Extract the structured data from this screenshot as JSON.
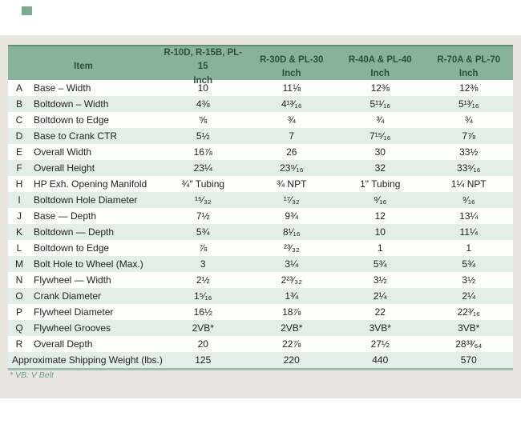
{
  "colors": {
    "header_bg": "#89b29a",
    "header_text": "#2f4f3e",
    "row_alt_bg": "#e2eee7",
    "panel_bg": "#e9e5df",
    "footnote_green": "#6ca287"
  },
  "table": {
    "item_header": "Item",
    "columns": [
      {
        "line1": "R-10D, R-15B, PL-15",
        "line2": "Inch"
      },
      {
        "line1": "R-30D & PL-30",
        "line2": "Inch"
      },
      {
        "line1": "R-40A & PL-40",
        "line2": "Inch"
      },
      {
        "line1": "R-70A & PL-70",
        "line2": "Inch"
      }
    ],
    "rows": [
      {
        "letter": "A",
        "item": "Base – Width",
        "values": [
          "10",
          "11⅛",
          "12⅜",
          "12⅜"
        ]
      },
      {
        "letter": "B",
        "item": "Boltdown – Width",
        "values": [
          "4⅜",
          "4¹³⁄₁₆",
          "5¹¹⁄₁₆",
          "5¹³⁄₁₆"
        ]
      },
      {
        "letter": "C",
        "item": "Boltdown to Edge",
        "values": [
          "⅝",
          "¾",
          "¾",
          "¾"
        ]
      },
      {
        "letter": "D",
        "item": "Base to Crank CTR",
        "values": [
          "5½",
          "7",
          "7¹⁵⁄₁₆",
          "7⅞"
        ]
      },
      {
        "letter": "E",
        "item": "Overall Width",
        "values": [
          "16⅞",
          "26",
          "30",
          "33½"
        ]
      },
      {
        "letter": "F",
        "item": "Overall Height",
        "values": [
          "23¼",
          "23⁹⁄₁₆",
          "32",
          "33⁹⁄₁₆"
        ]
      },
      {
        "letter": "H",
        "item": "HP Exh. Opening Manifold",
        "values": [
          "¾\" Tubing",
          "¾ NPT",
          "1\" Tubing",
          "1¼ NPT"
        ]
      },
      {
        "letter": "I",
        "item": "Boltdown Hole Diameter",
        "values": [
          "¹⁵⁄₃₂",
          "¹⁷⁄₃₂",
          "⁹⁄₁₆",
          "⁹⁄₁₆"
        ]
      },
      {
        "letter": "J",
        "item": "Base — Depth",
        "values": [
          "7½",
          "9¾",
          "12",
          "13¼"
        ]
      },
      {
        "letter": "K",
        "item": "Boltdown — Depth",
        "values": [
          "5¾",
          "8¹⁄₁₆",
          "10",
          "11¼"
        ]
      },
      {
        "letter": "L",
        "item": "Boltdown to Edge",
        "values": [
          "⅞",
          "²³⁄₃₂",
          "1",
          "1"
        ]
      },
      {
        "letter": "M",
        "item": "Bolt Hole to Wheel (Max.)",
        "values": [
          "3",
          "3¼",
          "5¾",
          "5¾"
        ]
      },
      {
        "letter": "N",
        "item": "Flywheel — Width",
        "values": [
          "2½",
          "2²³⁄₃₂",
          "3½",
          "3½"
        ]
      },
      {
        "letter": "O",
        "item": "Crank Diameter",
        "values": [
          "1⁵⁄₁₆",
          "1¾",
          "2¼",
          "2¼"
        ]
      },
      {
        "letter": "P",
        "item": "Flywheel Diameter",
        "values": [
          "16½",
          "18⅞",
          "22",
          "22³⁄₁₆"
        ]
      },
      {
        "letter": "Q",
        "item": "Flywheel Grooves",
        "values": [
          "2VB*",
          "2VB*",
          "3VB*",
          "3VB*"
        ]
      },
      {
        "letter": "R",
        "item": "Overall Depth",
        "values": [
          "20",
          "22⅞",
          "27½",
          "28³³⁄₆₄"
        ]
      }
    ],
    "footer_row": {
      "label": "Approximate Shipping Weight (lbs.)",
      "values": [
        "125",
        "220",
        "440",
        "570"
      ]
    }
  },
  "footnote": "* VB: V Belt"
}
